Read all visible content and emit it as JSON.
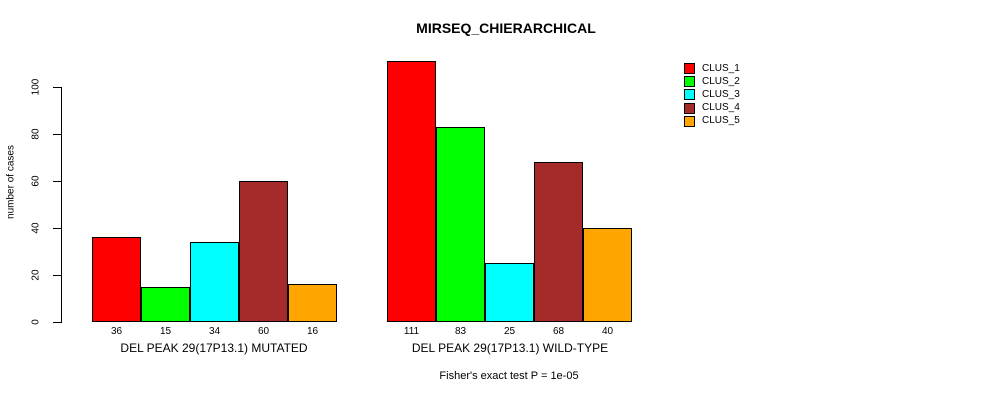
{
  "title": "MIRSEQ_CHIERARCHICAL",
  "footnote": "Fisher's exact test P = 1e-05",
  "chart_data": {
    "type": "bar",
    "title": "MIRSEQ_CHIERARCHICAL",
    "xlabel": "",
    "ylabel": "number of cases",
    "categories": [
      "DEL PEAK 29(17P13.1) MUTATED",
      "DEL PEAK 29(17P13.1) WILD-TYPE"
    ],
    "series": [
      {
        "name": "CLUS_1",
        "color": "#FF0000",
        "values": [
          36,
          111
        ]
      },
      {
        "name": "CLUS_2",
        "color": "#00FF00",
        "values": [
          15,
          83
        ]
      },
      {
        "name": "CLUS_3",
        "color": "#00FFFF",
        "values": [
          34,
          25
        ]
      },
      {
        "name": "CLUS_4",
        "color": "#A52A2A",
        "values": [
          60,
          68
        ]
      },
      {
        "name": "CLUS_5",
        "color": "#FFA500",
        "values": [
          16,
          40
        ]
      }
    ],
    "bar_value_labels": [
      [
        "36",
        "15",
        "34",
        "60",
        "16"
      ],
      [
        "111",
        "83",
        "25",
        "68",
        "40"
      ]
    ],
    "yticks": [
      0,
      20,
      40,
      60,
      80,
      100
    ],
    "ylim": [
      0,
      100
    ],
    "grid": false,
    "legend_position": "right",
    "annotation": "Fisher's exact test P = 1e-05"
  }
}
